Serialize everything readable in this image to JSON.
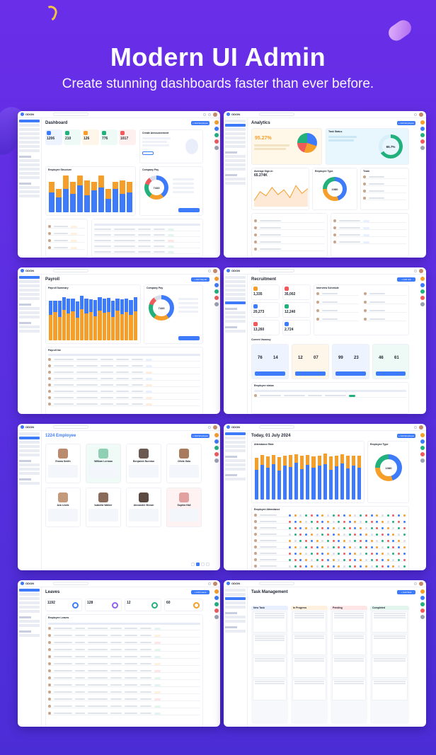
{
  "hero": {
    "title": "Modern UI Admin",
    "subtitle": "Create stunning dashboards faster than ever before."
  },
  "colors": {
    "background": "#5a2fe0",
    "accent": "#3e7bfa",
    "orange": "#f59e2a",
    "green": "#22b07d",
    "red": "#ef5b5b"
  },
  "screens": [
    {
      "id": "dashboard",
      "title": "Dashboard",
      "button": "+ Add Employee",
      "stats": [
        {
          "value": "1206",
          "color": "#3e7bfa"
        },
        {
          "value": "210",
          "color": "#22b07d"
        },
        {
          "value": "126",
          "color": "#f59e2a"
        },
        {
          "value": "776",
          "color": "#22b07d"
        },
        {
          "value": "1017",
          "color": "#ef5b5b"
        }
      ],
      "chart_title": "Employee Structure",
      "donut_title": "Company Pay",
      "donut_value": "7433",
      "announcement": "Create Announcement"
    },
    {
      "id": "analytics",
      "title": "Analytics",
      "button": "+ Add Employee",
      "banner_value": "95.27%",
      "task_title": "Task Status",
      "task_value": "65.7%",
      "line_title": "Average Sign-In",
      "line_value": "65.274K",
      "donut_title": "Employee Type",
      "donut_value": "1080",
      "side_title": "Team"
    },
    {
      "id": "payroll",
      "title": "Payroll",
      "button": "+ Add Payroll",
      "chart_title": "Payroll Summary",
      "donut_title": "Company Pay",
      "donut_value": "7433",
      "table_title": "Payroll list"
    },
    {
      "id": "recruitment",
      "title": "Recruitment",
      "button": "+ Add Job",
      "stats": [
        "1,335",
        "35,002",
        "20,273",
        "12,240",
        "13,260",
        "2,724"
      ],
      "schedule_title": "Interview Schedule",
      "jobs_title": "Current Vacancy",
      "job_counts": [
        [
          "76",
          "14"
        ],
        [
          "12",
          "07"
        ],
        [
          "99",
          "23"
        ],
        [
          "46",
          "61"
        ]
      ],
      "table_title": "Employee status"
    },
    {
      "id": "employee",
      "title": "1224 Employee",
      "button": "+ Add Employee",
      "people": [
        {
          "name": "Emma Smith"
        },
        {
          "name": "William Lerman"
        },
        {
          "name": "Benjamin Nurnian"
        },
        {
          "name": "Olivia Gala"
        },
        {
          "name": "Ava Lewis"
        },
        {
          "name": "Isabella Walker"
        },
        {
          "name": "Alexander Brown"
        },
        {
          "name": "Sophia Hall"
        }
      ]
    },
    {
      "id": "attendance",
      "title": "Today, 01 July 2024",
      "button": "+ Add Employee",
      "chart_title": "Attendance Rate",
      "donut_title": "Employee Type",
      "donut_value": "1080",
      "table_title": "Employee Attendance"
    },
    {
      "id": "leaves",
      "title": "Leaves",
      "button": "+ Add Leave",
      "stats": [
        {
          "value": "1192",
          "color": "#3e7bfa"
        },
        {
          "value": "128",
          "color": "#8e63f2"
        },
        {
          "value": "12",
          "color": "#22b07d"
        },
        {
          "value": "60",
          "color": "#f59e2a"
        }
      ],
      "table_title": "Employee Leaves"
    },
    {
      "id": "tasks",
      "title": "Task Management",
      "button": "+ Add Task",
      "columns": [
        {
          "name": "New Task",
          "color": "#3e7bfa"
        },
        {
          "name": "In Progress",
          "color": "#f59e2a"
        },
        {
          "name": "Pending",
          "color": "#ef5b5b"
        },
        {
          "name": "Completed",
          "color": "#22b07d"
        }
      ]
    }
  ],
  "chart_data": [
    {
      "type": "bar",
      "title": "Employee Structure",
      "categories": [
        "1",
        "2",
        "3",
        "4",
        "5",
        "6",
        "7",
        "8",
        "9",
        "10",
        "11",
        "12"
      ],
      "series": [
        {
          "values": [
            60,
            45,
            70,
            55,
            80,
            50,
            65,
            75,
            40,
            70,
            55,
            60
          ]
        },
        {
          "values": [
            30,
            25,
            40,
            35,
            30,
            45,
            25,
            35,
            30,
            20,
            40,
            30
          ]
        }
      ]
    },
    {
      "type": "bar",
      "title": "Payroll Summary",
      "categories": [
        "1",
        "2",
        "3",
        "4",
        "5",
        "6",
        "7",
        "8",
        "9",
        "10",
        "11",
        "12",
        "13",
        "14",
        "15",
        "16",
        "17",
        "18",
        "19",
        "20"
      ],
      "series": [
        {
          "values": [
            55,
            60,
            50,
            65,
            58,
            62,
            48,
            66,
            57,
            60,
            52,
            64,
            59,
            61,
            50,
            63,
            56,
            60,
            54,
            62
          ]
        },
        {
          "values": [
            30,
            25,
            35,
            28,
            32,
            27,
            36,
            30,
            33,
            28,
            34,
            29,
            31,
            30,
            35,
            27,
            32,
            29,
            33,
            30
          ]
        }
      ]
    },
    {
      "type": "bar",
      "title": "Attendance Rate",
      "categories": [
        "1",
        "2",
        "3",
        "4",
        "5",
        "6",
        "7",
        "8",
        "9",
        "10",
        "11",
        "12",
        "13",
        "14",
        "15",
        "16",
        "17",
        "18",
        "19"
      ],
      "series": [
        {
          "values": [
            60,
            70,
            65,
            72,
            58,
            68,
            66,
            74,
            62,
            70,
            64,
            69,
            71,
            60,
            67,
            73,
            63,
            68,
            65
          ]
        },
        {
          "values": [
            25,
            20,
            22,
            18,
            28,
            21,
            24,
            17,
            26,
            20,
            23,
            19,
            22,
            27,
            21,
            18,
            25,
            20,
            24
          ]
        }
      ]
    },
    {
      "type": "line",
      "title": "Average Sign-In",
      "x": [
        1,
        2,
        3,
        4,
        5,
        6,
        7,
        8,
        9,
        10
      ],
      "series": [
        {
          "values": [
            40,
            55,
            48,
            62,
            50,
            58,
            45,
            65,
            52,
            60
          ]
        }
      ]
    }
  ]
}
